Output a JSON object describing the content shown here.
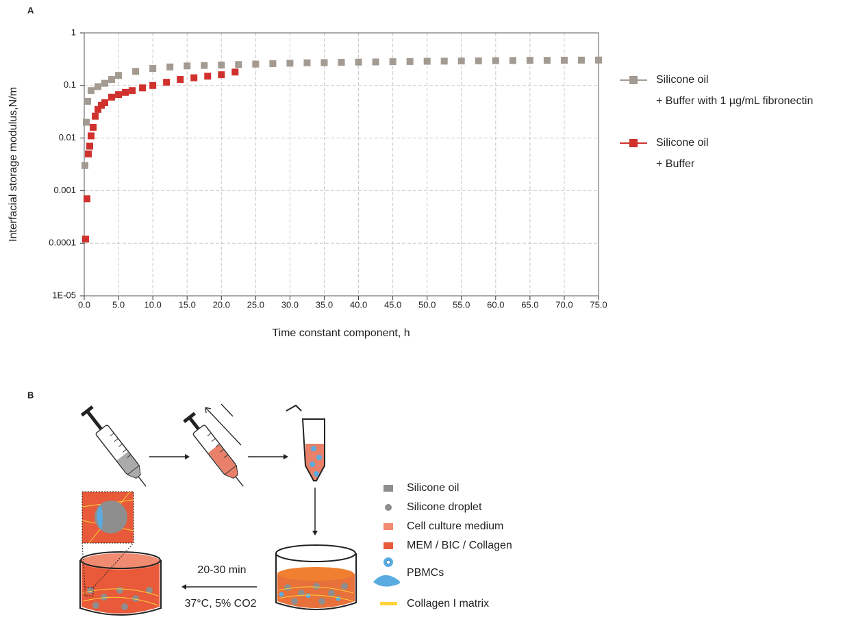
{
  "panel_a": {
    "label": "A"
  },
  "chart_data": {
    "type": "scatter",
    "yscale": "log",
    "grid": true,
    "legend": "right",
    "xlabel": "Time constant component, h",
    "ylabel": "Interfacial storage modulus,N/m",
    "xlim": [
      0,
      75
    ],
    "ylim": [
      1e-05,
      1
    ],
    "xticks": [
      {
        "value": 0,
        "label": "0.0"
      },
      {
        "value": 5,
        "label": "5.0"
      },
      {
        "value": 10,
        "label": "10.0"
      },
      {
        "value": 15,
        "label": "15.0"
      },
      {
        "value": 20,
        "label": "20.0"
      },
      {
        "value": 25,
        "label": "25.0"
      },
      {
        "value": 30,
        "label": "30.0"
      },
      {
        "value": 35,
        "label": "35.0"
      },
      {
        "value": 40,
        "label": "40.0"
      },
      {
        "value": 45,
        "label": "45.0"
      },
      {
        "value": 50,
        "label": "50.0"
      },
      {
        "value": 55,
        "label": "55.0"
      },
      {
        "value": 60,
        "label": "60.0"
      },
      {
        "value": 65,
        "label": "65.0"
      },
      {
        "value": 70,
        "label": "70.0"
      },
      {
        "value": 75,
        "label": "75.0"
      }
    ],
    "yticks": [
      {
        "value": 1e-05,
        "label": "1E-05"
      },
      0.0001,
      0.001,
      0.01,
      0.1,
      1
    ],
    "series": [
      {
        "name": "Silicone oil\n+ Buffer with 1 µg/mL fibronectin",
        "color": "#a39a92",
        "x": [
          0.1,
          0.3,
          0.5,
          1,
          2,
          3,
          4,
          5,
          7.5,
          10,
          12.5,
          15,
          17.5,
          20,
          22.5,
          25,
          27.5,
          30,
          32.5,
          35,
          37.5,
          40,
          42.5,
          45,
          47.5,
          50,
          52.5,
          55,
          57.5,
          60,
          62.5,
          65,
          67.5,
          70,
          72.5,
          75
        ],
        "values": [
          0.003,
          0.02,
          0.05,
          0.08,
          0.095,
          0.11,
          0.13,
          0.155,
          0.185,
          0.21,
          0.225,
          0.235,
          0.24,
          0.245,
          0.25,
          0.255,
          0.26,
          0.265,
          0.27,
          0.272,
          0.275,
          0.278,
          0.28,
          0.283,
          0.285,
          0.288,
          0.29,
          0.292,
          0.294,
          0.296,
          0.298,
          0.3,
          0.3,
          0.302,
          0.303,
          0.304
        ]
      },
      {
        "name": "Silicone oil\n+ Buffer",
        "color": "#d0312d",
        "x": [
          0.2,
          0.4,
          0.6,
          0.8,
          1,
          1.3,
          1.6,
          2,
          2.5,
          3,
          4,
          5,
          6,
          7,
          8.5,
          10,
          12,
          14,
          16,
          18,
          20,
          22
        ],
        "values": [
          0.00012,
          0.0007,
          0.005,
          0.007,
          0.011,
          0.016,
          0.026,
          0.035,
          0.042,
          0.047,
          0.06,
          0.067,
          0.074,
          0.08,
          0.09,
          0.1,
          0.115,
          0.13,
          0.14,
          0.15,
          0.16,
          0.18
        ]
      }
    ]
  },
  "panel_b": {
    "label": "B",
    "step_time": "20-30 min",
    "step_conditions": "37°C, 5% CO2",
    "legend": [
      "Silicone oil",
      "Silicone droplet",
      "Cell culture medium",
      "MEM / BIC / Collagen",
      "PBMCs",
      "Collagen I matrix"
    ]
  }
}
